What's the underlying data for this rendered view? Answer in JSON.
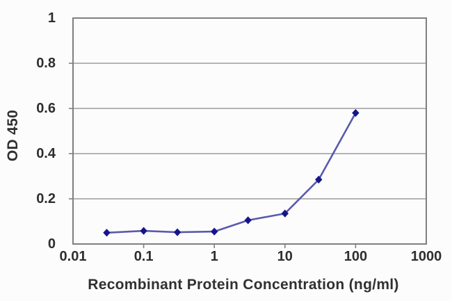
{
  "chart_data": {
    "type": "line",
    "title": "",
    "xlabel": "Recombinant Protein Concentration (ng/ml)",
    "ylabel": "OD 450",
    "xscale": "log",
    "xlim": [
      0.01,
      1000
    ],
    "ylim": [
      0,
      1
    ],
    "xticks": {
      "values": [
        0.01,
        0.1,
        1,
        10,
        100,
        1000
      ],
      "labels": [
        "0.01",
        "0.1",
        "1",
        "10",
        "100",
        "1000"
      ]
    },
    "yticks": {
      "values": [
        0,
        0.2,
        0.4,
        0.6,
        0.8,
        1
      ],
      "labels": [
        "0",
        "0.2",
        "0.4",
        "0.6",
        "0.8",
        "1"
      ]
    },
    "grid": "horizontal",
    "legend": "none",
    "series": [
      {
        "name": "OD 450",
        "marker": "diamond",
        "x": [
          0.03,
          0.1,
          0.3,
          1,
          3,
          10,
          30,
          100
        ],
        "y": [
          0.05,
          0.058,
          0.052,
          0.055,
          0.105,
          0.135,
          0.285,
          0.58
        ]
      }
    ],
    "colors": {
      "line": "#5a5aae",
      "marker": "#15158a",
      "grid": "#9b9b9b",
      "axis_border": "#7f7f7f",
      "text": "#303030",
      "background": "#fcfcfc"
    }
  }
}
